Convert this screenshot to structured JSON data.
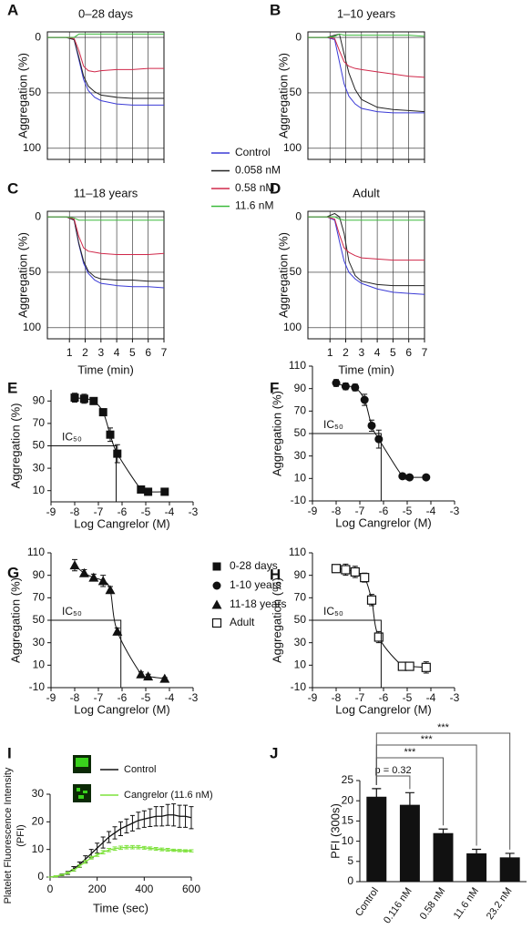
{
  "chart_data": [
    {
      "type": "line",
      "panel": "A",
      "title": "0–28 days",
      "ylabel": "Aggregation (%)",
      "x": [
        -0.4,
        0.8,
        1.3,
        1.6,
        1.9,
        2.2,
        2.6,
        3,
        4,
        5,
        6,
        7
      ],
      "xlim": [
        -0.4,
        7
      ],
      "xticks": [
        1,
        2,
        3,
        4,
        5,
        6,
        7
      ],
      "xtick_labels": false,
      "ylim": [
        -5,
        110
      ],
      "yticks": [
        0,
        50,
        100
      ],
      "y_inverted": true,
      "grid": true,
      "frame": true,
      "series": [
        {
          "name": "Control",
          "color": "#3b3bd6",
          "values": [
            0,
            0,
            2,
            20,
            38,
            48,
            54,
            57,
            60,
            61,
            61,
            61
          ]
        },
        {
          "name": "0.058 nM",
          "color": "#222222",
          "values": [
            0,
            0,
            2,
            18,
            35,
            44,
            49,
            52,
            54,
            55,
            55,
            55
          ]
        },
        {
          "name": "0.58 nM",
          "color": "#d0284a",
          "values": [
            0,
            0,
            1,
            12,
            26,
            30,
            31,
            30,
            29,
            29,
            28,
            28
          ]
        },
        {
          "name": "11.6 nM",
          "color": "#3dbb3d",
          "values": [
            0,
            0,
            0,
            -3,
            -3,
            -3,
            -3,
            -3,
            -3,
            -3,
            -3,
            -3
          ]
        }
      ]
    },
    {
      "type": "line",
      "panel": "B",
      "title": "1–10 years",
      "ylabel": "Aggregation (%)",
      "x": [
        -0.4,
        0.8,
        1.3,
        1.6,
        1.9,
        2.2,
        2.6,
        3,
        4,
        5,
        6,
        7
      ],
      "xlim": [
        -0.4,
        7
      ],
      "xticks": [
        1,
        2,
        3,
        4,
        5,
        6,
        7
      ],
      "xtick_labels": false,
      "ylim": [
        -5,
        110
      ],
      "yticks": [
        0,
        50,
        100
      ],
      "y_inverted": true,
      "grid": true,
      "frame": true,
      "legend": true,
      "series": [
        {
          "name": "Control",
          "color": "#3b3bd6",
          "values": [
            0,
            0,
            2,
            22,
            42,
            53,
            60,
            64,
            67,
            68,
            68,
            68
          ]
        },
        {
          "name": "0.058 nM",
          "color": "#222222",
          "values": [
            0,
            0,
            -2,
            -3,
            15,
            32,
            47,
            56,
            63,
            65,
            66,
            67
          ]
        },
        {
          "name": "0.58 nM",
          "color": "#d0284a",
          "values": [
            0,
            0,
            1,
            12,
            22,
            26,
            28,
            29,
            31,
            33,
            35,
            36
          ]
        },
        {
          "name": "11.6 nM",
          "color": "#3dbb3d",
          "values": [
            0,
            0,
            -1,
            -3,
            -2,
            -2,
            -2,
            -2,
            -2,
            -2,
            -2,
            -1
          ]
        }
      ]
    },
    {
      "type": "line",
      "panel": "C",
      "title": "11–18 years",
      "ylabel": "Aggregation (%)",
      "xlabel": "Time (min)",
      "x": [
        -0.4,
        0.8,
        1.3,
        1.6,
        1.9,
        2.2,
        2.6,
        3,
        4,
        5,
        6,
        7
      ],
      "xlim": [
        -0.4,
        7
      ],
      "xticks": [
        1,
        2,
        3,
        4,
        5,
        6,
        7
      ],
      "ylim": [
        -5,
        110
      ],
      "yticks": [
        0,
        50,
        100
      ],
      "y_inverted": true,
      "grid": true,
      "frame": true,
      "series": [
        {
          "name": "Control",
          "color": "#3b3bd6",
          "values": [
            0,
            0,
            3,
            25,
            42,
            51,
            57,
            60,
            62,
            63,
            63,
            64
          ]
        },
        {
          "name": "0.058 nM",
          "color": "#222222",
          "values": [
            0,
            0,
            3,
            24,
            40,
            49,
            54,
            56,
            57,
            57,
            58,
            58
          ]
        },
        {
          "name": "0.58 nM",
          "color": "#d0284a",
          "values": [
            0,
            0,
            2,
            18,
            28,
            31,
            32,
            33,
            34,
            34,
            34,
            33
          ]
        },
        {
          "name": "11.6 nM",
          "color": "#3dbb3d",
          "values": [
            0,
            0,
            1,
            3,
            3,
            3,
            3,
            3,
            3,
            3,
            3,
            3
          ]
        }
      ]
    },
    {
      "type": "line",
      "panel": "D",
      "title": "Adult",
      "ylabel": "Aggregation (%)",
      "xlabel": "Time (min)",
      "x": [
        -0.4,
        0.8,
        1.3,
        1.6,
        1.9,
        2.2,
        2.6,
        3,
        4,
        5,
        6,
        7
      ],
      "xlim": [
        -0.4,
        7
      ],
      "xticks": [
        1,
        2,
        3,
        4,
        5,
        6,
        7
      ],
      "ylim": [
        -5,
        110
      ],
      "yticks": [
        0,
        50,
        100
      ],
      "y_inverted": true,
      "grid": true,
      "frame": true,
      "series": [
        {
          "name": "Control",
          "color": "#3b3bd6",
          "values": [
            0,
            0,
            3,
            22,
            40,
            50,
            56,
            60,
            65,
            68,
            69,
            70
          ]
        },
        {
          "name": "0.058 nM",
          "color": "#222222",
          "values": [
            0,
            0,
            -3,
            0,
            15,
            40,
            53,
            58,
            61,
            62,
            62,
            62
          ]
        },
        {
          "name": "0.58 nM",
          "color": "#d0284a",
          "values": [
            0,
            0,
            2,
            16,
            28,
            32,
            35,
            37,
            38,
            39,
            39,
            39
          ]
        },
        {
          "name": "11.6 nM",
          "color": "#3dbb3d",
          "values": [
            0,
            0,
            0,
            2,
            3,
            3,
            3,
            3,
            3,
            3,
            3,
            3
          ]
        }
      ]
    },
    {
      "type": "scatter",
      "panel": "E",
      "ylabel": "Aggregation (%)",
      "xlabel": "Log Cangrelor (M)",
      "annotation": "IC₅₀",
      "ic50": {
        "x": -6.25,
        "y": 50
      },
      "x": [
        -8,
        -7.6,
        -7.2,
        -6.8,
        -6.5,
        -6.2,
        -5.2,
        -4.9,
        -4.2
      ],
      "xlim": [
        -9,
        -3
      ],
      "xticks": [
        -9,
        -8,
        -7,
        -6,
        -5,
        -4,
        -3
      ],
      "ylim": [
        0,
        100
      ],
      "yticks": [
        10,
        30,
        50,
        70,
        90
      ],
      "legend": true,
      "series": [
        {
          "name": "0-28 days",
          "color": "#111111",
          "marker": "square",
          "values": [
            93,
            92,
            90,
            80,
            60,
            43,
            11,
            9,
            9
          ],
          "errors": [
            4,
            4,
            3,
            3,
            6,
            8,
            2,
            2,
            2
          ]
        }
      ]
    },
    {
      "type": "scatter",
      "panel": "F",
      "ylabel": "Aggregation (%)",
      "xlabel": "Log Cangrelor (M)",
      "annotation": "IC₅₀",
      "ic50": {
        "x": -6.1,
        "y": 50
      },
      "x": [
        -8,
        -7.6,
        -7.2,
        -6.8,
        -6.5,
        -6.2,
        -5.2,
        -4.9,
        -4.2
      ],
      "xlim": [
        -9,
        -3
      ],
      "xticks": [
        -9,
        -8,
        -7,
        -6,
        -5,
        -4,
        -3
      ],
      "ylim": [
        -10,
        110
      ],
      "yticks": [
        -10,
        10,
        30,
        50,
        70,
        90,
        110
      ],
      "legend": true,
      "series": [
        {
          "name": "1-10 years",
          "color": "#111111",
          "marker": "circle",
          "values": [
            95,
            92,
            91,
            80,
            57,
            45,
            12,
            11,
            11
          ],
          "errors": [
            3,
            3,
            3,
            5,
            5,
            8,
            2,
            2,
            2
          ]
        }
      ]
    },
    {
      "type": "scatter",
      "panel": "G",
      "ylabel": "Aggregation (%)",
      "xlabel": "Log Cangrelor (M)",
      "annotation": "IC₅₀",
      "ic50": {
        "x": -6.05,
        "y": 50
      },
      "x": [
        -8,
        -7.6,
        -7.2,
        -6.8,
        -6.5,
        -6.2,
        -5.2,
        -4.9,
        -4.2
      ],
      "xlim": [
        -9,
        -3
      ],
      "xticks": [
        -9,
        -8,
        -7,
        -6,
        -5,
        -4,
        -3
      ],
      "ylim": [
        -10,
        110
      ],
      "yticks": [
        -10,
        10,
        30,
        50,
        70,
        90,
        110
      ],
      "legend": true,
      "series": [
        {
          "name": "11-18 years",
          "color": "#111111",
          "marker": "triangle",
          "values": [
            99,
            92,
            88,
            85,
            77,
            40,
            2,
            0,
            -2
          ],
          "errors": [
            5,
            3,
            3,
            5,
            3,
            3,
            2,
            2,
            1
          ]
        }
      ]
    },
    {
      "type": "scatter",
      "panel": "H",
      "ylabel": "Aggregation (%)",
      "xlabel": "Log Cangrelor (M)",
      "annotation": "IC₅₀",
      "ic50": {
        "x": -6.1,
        "y": 50
      },
      "x": [
        -8,
        -7.6,
        -7.2,
        -6.8,
        -6.5,
        -6.2,
        -5.2,
        -4.9,
        -4.2
      ],
      "xlim": [
        -9,
        -3
      ],
      "xticks": [
        -9,
        -8,
        -7,
        -6,
        -5,
        -4,
        -3
      ],
      "ylim": [
        -10,
        110
      ],
      "yticks": [
        -10,
        10,
        30,
        50,
        70,
        90,
        110
      ],
      "legend": true,
      "series": [
        {
          "name": "Adult",
          "color": "#111111",
          "marker": "open-square",
          "values": [
            96,
            95,
            93,
            88,
            68,
            35,
            9,
            9,
            8
          ],
          "errors": [
            2,
            5,
            5,
            4,
            5,
            5,
            2,
            2,
            5
          ]
        }
      ]
    },
    {
      "type": "line",
      "panel": "I",
      "ylabel": [
        "Platelet Fluorescence Intensity",
        "(PFI)"
      ],
      "xlabel": "Time (sec)",
      "x": [
        0,
        25,
        50,
        75,
        100,
        125,
        150,
        175,
        200,
        225,
        250,
        275,
        300,
        325,
        350,
        375,
        400,
        425,
        450,
        475,
        500,
        525,
        550,
        575,
        600
      ],
      "xlim": [
        0,
        600
      ],
      "xticks": [
        0,
        200,
        400,
        600
      ],
      "ylim": [
        0,
        30
      ],
      "yticks": [
        0,
        10,
        20,
        30
      ],
      "legend": true,
      "series": [
        {
          "name": "Control",
          "color": "#111111",
          "values": [
            0,
            0.3,
            0.8,
            1.5,
            3,
            4.5,
            6.5,
            8.5,
            10.5,
            12.5,
            14.5,
            16,
            17.5,
            18.5,
            19.5,
            20.5,
            21,
            21.5,
            22,
            22,
            22.5,
            22.5,
            22,
            22,
            21.5
          ],
          "errors": [
            0,
            0.2,
            0.3,
            0.5,
            0.8,
            1,
            1.2,
            1.5,
            1.8,
            2,
            2,
            2.2,
            2.5,
            2.5,
            2.8,
            3,
            3,
            3.2,
            3.5,
            3.5,
            3.8,
            4,
            4,
            4,
            4
          ]
        },
        {
          "name": "Cangrelor (11.6 nM)",
          "color": "#7ee23c",
          "values": [
            0,
            0.3,
            0.8,
            1.5,
            2.5,
            4,
            5.5,
            7,
            8,
            9,
            9.8,
            10.3,
            10.6,
            10.8,
            10.8,
            10.8,
            10.6,
            10.4,
            10.2,
            10,
            9.9,
            9.7,
            9.6,
            9.5,
            9.5
          ],
          "errors": [
            0,
            0.2,
            0.2,
            0.3,
            0.3,
            0.4,
            0.5,
            0.5,
            0.5,
            0.6,
            0.6,
            0.6,
            0.6,
            0.6,
            0.6,
            0.6,
            0.5,
            0.5,
            0.5,
            0.5,
            0.5,
            0.4,
            0.4,
            0.4,
            0.4
          ]
        }
      ]
    },
    {
      "type": "bar",
      "panel": "J",
      "ylabel": "PFI (300s)",
      "color": "#111111",
      "categories": [
        "Control",
        "0.116 nM",
        "0.58 nM",
        "11.6 nM",
        "23.2 nM"
      ],
      "values": [
        21,
        19,
        12,
        7,
        6
      ],
      "errors": [
        2,
        3,
        1,
        1,
        1
      ],
      "ylim": [
        0,
        25
      ],
      "yticks": [
        0,
        5,
        10,
        15,
        20,
        25
      ],
      "comparisons": [
        {
          "pair": [
            "Control",
            "0.116 nM"
          ],
          "label": "p = 0.32"
        },
        {
          "pair": [
            "Control",
            "0.58 nM"
          ],
          "label": "***"
        },
        {
          "pair": [
            "Control",
            "11.6 nM"
          ],
          "label": "***"
        },
        {
          "pair": [
            "Control",
            "23.2 nM"
          ],
          "label": "***"
        }
      ]
    }
  ]
}
